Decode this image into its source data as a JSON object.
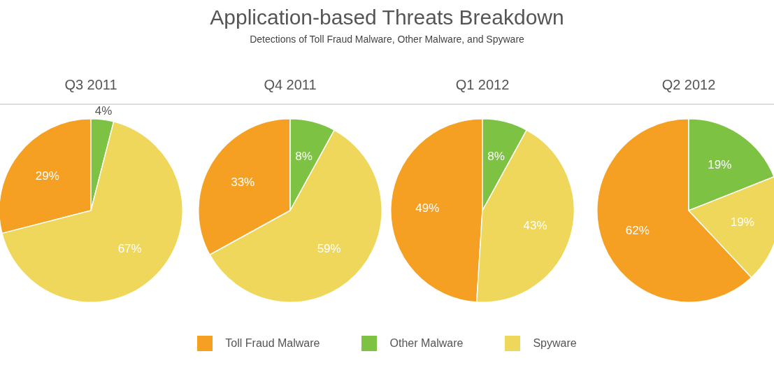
{
  "chart_data": [
    {
      "type": "other",
      "title": "Application-based Threats Breakdown",
      "subtitle": "Detections of Toll Fraud Malware, Other Malware, and Spyware"
    },
    {
      "type": "pie",
      "title": "Q3 2011",
      "categories": [
        "Toll Fraud Malware",
        "Other Malware",
        "Spyware"
      ],
      "values": [
        29,
        4,
        67
      ],
      "value_labels": [
        "29%",
        "4%",
        "67%"
      ],
      "colors": [
        "#f5a023",
        "#7dc243",
        "#eed75a"
      ],
      "legend": "bottom"
    },
    {
      "type": "pie",
      "title": "Q4 2011",
      "categories": [
        null,
        null,
        null
      ],
      "values": [
        33,
        8,
        59
      ],
      "value_labels": [
        "33%",
        "8%",
        "59%"
      ],
      "colors": [
        "#f5a023",
        "#7dc243",
        "#eed75a"
      ]
    },
    {
      "type": "pie",
      "title": "Q1 2012",
      "categories": [
        null,
        null,
        null
      ],
      "values": [
        49,
        8,
        43
      ],
      "value_labels": [
        "49%",
        "8%",
        "43%"
      ],
      "colors": [
        "#f5a023",
        "#7dc243",
        "#eed75a"
      ]
    },
    {
      "type": "pie",
      "title": "Q2 2012",
      "categories": [
        null,
        null,
        null
      ],
      "values": [
        62,
        19,
        19
      ],
      "value_labels": [
        "62%",
        "19%",
        "19%"
      ],
      "colors": [
        "#f5a023",
        "#7dc243",
        "#eed75a"
      ]
    }
  ]
}
